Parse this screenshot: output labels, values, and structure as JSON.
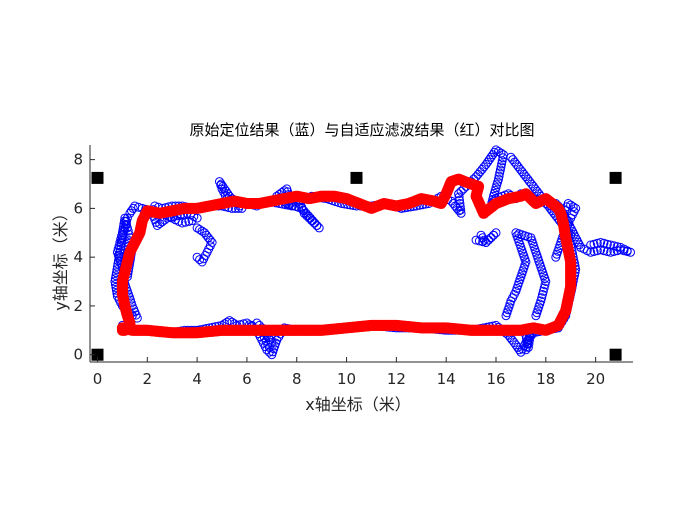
{
  "chart_data": {
    "type": "scatter",
    "title": "原始定位结果（蓝）与自适应滤波结果（红）对比图",
    "xlabel": "x轴坐标（米）",
    "ylabel": "y轴坐标（米）",
    "xlim": [
      -0.3,
      21.5
    ],
    "ylim": [
      -0.3,
      8.6
    ],
    "xticks": [
      0,
      2,
      4,
      6,
      8,
      10,
      12,
      14,
      16,
      18,
      20
    ],
    "yticks": [
      0,
      2,
      4,
      6,
      8
    ],
    "grid": false,
    "legend": false,
    "colors": {
      "raw": "#0000ff",
      "filtered": "#ff0000",
      "anchor": "#000000"
    },
    "anchors": [
      {
        "x": 0.0,
        "y": 0.0
      },
      {
        "x": 0.0,
        "y": 7.25
      },
      {
        "x": 10.4,
        "y": 7.25
      },
      {
        "x": 20.8,
        "y": 7.25
      },
      {
        "x": 20.8,
        "y": 0.0
      }
    ],
    "series": [
      {
        "marker": "circle-open",
        "x": [
          1.0,
          1.3,
          1.6,
          2.0,
          2.5,
          3.0,
          3.5,
          4.0,
          4.5,
          5.0,
          5.3,
          5.6,
          6.0,
          6.4,
          6.6,
          6.8,
          7.0,
          7.2,
          7.5,
          8.0,
          8.5,
          9.0,
          10.0,
          11.0,
          12.0,
          13.0,
          14.0,
          15.0,
          16.0,
          16.5,
          16.8,
          17.0,
          17.2,
          17.5,
          18.0,
          18.5,
          18.8,
          19.0,
          19.2,
          19.0,
          18.8,
          18.7,
          18.6,
          18.4,
          18.2,
          18.0,
          17.8,
          17.5,
          17.2,
          17.0,
          16.8,
          16.5,
          16.0,
          15.8,
          15.9,
          16.1,
          16.3,
          16.0,
          15.6,
          15.2,
          14.8,
          14.5,
          14.6,
          14.2,
          13.8,
          13.3,
          12.8,
          12.2,
          11.6,
          11.0,
          10.4,
          9.8,
          9.2,
          8.6,
          8.1,
          8.3,
          8.6,
          8.9,
          8.2,
          7.6,
          7.2,
          7.6,
          7.8,
          7.3,
          6.8,
          6.4,
          6.0,
          5.6,
          5.2,
          5.0,
          4.9,
          5.1,
          5.3,
          5.6,
          5.8,
          5.4,
          5.0,
          4.6,
          4.2,
          3.8,
          3.4,
          3.0,
          2.6,
          2.3,
          2.2,
          2.4,
          2.8,
          3.2,
          3.6,
          4.0,
          3.8,
          3.4,
          3.0,
          2.6,
          2.2,
          1.8,
          1.5,
          1.3,
          1.2,
          1.1,
          1.0,
          0.9,
          0.8,
          0.7,
          0.8,
          1.0,
          1.2,
          1.4,
          1.6,
          1.4,
          1.2,
          1.0,
          1.1,
          1.2,
          1.3,
          1.2,
          1.1,
          1.0,
          0.9,
          0.8,
          1.0,
          1.2,
          1.4,
          1.6,
          4.0,
          4.2,
          4.4,
          4.6,
          4.3,
          4.0,
          6.2,
          6.4,
          6.6,
          6.8,
          7.0,
          6.9,
          6.7,
          16.4,
          16.6,
          16.8,
          17.0,
          17.2,
          17.0,
          16.8,
          17.4,
          17.6,
          17.8,
          18.0,
          17.8,
          17.6,
          18.4,
          18.6,
          18.8,
          19.0,
          19.2,
          18.9,
          18.7,
          19.4,
          19.8,
          20.2,
          20.6,
          21.0,
          21.4,
          21.0,
          20.6,
          20.2,
          19.8,
          17.2,
          17.3,
          17.4,
          17.3,
          17.2,
          16.6,
          16.9,
          17.2,
          17.5,
          17.8,
          18.1,
          18.4,
          18.7,
          19.0,
          15.4,
          15.6,
          15.8,
          16.0,
          15.6,
          15.2
        ],
        "y": [
          1.2,
          1.1,
          1.0,
          1.0,
          0.9,
          0.9,
          1.0,
          1.0,
          1.1,
          1.2,
          1.4,
          1.2,
          1.3,
          1.0,
          0.6,
          0.2,
          0.0,
          0.6,
          1.1,
          1.0,
          1.0,
          1.0,
          1.1,
          1.2,
          1.1,
          1.1,
          1.0,
          1.0,
          1.2,
          0.8,
          0.4,
          0.1,
          0.5,
          0.9,
          1.0,
          1.1,
          1.6,
          2.5,
          3.5,
          4.5,
          5.2,
          5.8,
          6.0,
          6.2,
          6.1,
          6.2,
          6.3,
          6.4,
          6.5,
          6.6,
          6.4,
          6.6,
          6.4,
          6.1,
          6.5,
          7.2,
          8.2,
          8.4,
          7.8,
          7.3,
          6.9,
          6.6,
          5.8,
          6.3,
          6.5,
          6.2,
          6.1,
          6.0,
          6.2,
          6.1,
          6.1,
          6.2,
          6.4,
          6.5,
          6.3,
          5.8,
          5.5,
          5.2,
          6.0,
          6.2,
          6.5,
          6.8,
          6.1,
          6.2,
          6.3,
          6.1,
          6.2,
          6.3,
          6.4,
          6.8,
          7.1,
          6.8,
          6.5,
          6.2,
          6.0,
          6.0,
          6.1,
          6.1,
          6.0,
          6.0,
          6.1,
          6.1,
          6.0,
          6.1,
          5.8,
          5.3,
          5.6,
          5.7,
          5.8,
          5.6,
          5.5,
          5.4,
          5.6,
          5.8,
          5.9,
          6.0,
          6.1,
          5.8,
          5.6,
          5.2,
          4.8,
          4.2,
          3.6,
          3.0,
          2.4,
          2.0,
          1.8,
          1.6,
          1.5,
          2.0,
          2.6,
          3.2,
          3.8,
          4.2,
          4.8,
          5.2,
          5.6,
          5.0,
          4.6,
          4.2,
          3.6,
          3.2,
          4.4,
          4.8,
          4.0,
          3.8,
          4.2,
          4.6,
          5.0,
          5.2,
          1.2,
          1.3,
          1.1,
          0.8,
          0.5,
          0.3,
          0.7,
          1.6,
          2.2,
          2.6,
          3.2,
          3.8,
          4.4,
          5.0,
          4.8,
          4.2,
          3.6,
          3.0,
          2.2,
          1.6,
          4.0,
          4.6,
          5.2,
          5.6,
          6.0,
          6.2,
          5.8,
          4.4,
          4.2,
          4.3,
          4.2,
          4.3,
          4.2,
          4.4,
          4.5,
          4.6,
          4.5,
          0.2,
          0.6,
          1.0,
          0.3,
          0.8,
          8.1,
          7.7,
          7.3,
          6.9,
          6.5,
          6.1,
          5.7,
          5.3,
          4.9,
          4.9,
          4.6,
          4.8,
          5.0,
          4.6,
          4.7
        ]
      },
      {
        "marker": "circle-filled",
        "x": [
          1.0,
          1.4,
          2.0,
          3.0,
          4.0,
          5.0,
          6.0,
          7.0,
          8.0,
          9.0,
          10.0,
          11.0,
          12.0,
          13.0,
          14.0,
          15.0,
          16.0,
          17.0,
          17.5,
          18.0,
          18.5,
          18.8,
          19.0,
          19.0,
          18.8,
          18.7,
          18.6,
          18.5,
          18.0,
          17.6,
          17.2,
          17.0,
          16.5,
          16.0,
          15.5,
          15.2,
          15.3,
          15.0,
          14.5,
          14.2,
          14.0,
          13.8,
          13.5,
          13.0,
          12.5,
          12.0,
          11.5,
          11.0,
          10.5,
          10.0,
          9.5,
          9.0,
          8.5,
          8.0,
          7.5,
          7.0,
          6.5,
          6.0,
          5.5,
          5.0,
          4.5,
          4.0,
          3.5,
          3.0,
          2.5,
          2.0,
          1.8,
          1.7,
          1.5,
          1.3,
          1.2,
          1.1,
          1.0,
          1.0,
          1.1,
          1.2,
          1.3,
          1.3,
          1.2,
          1.1,
          1.0
        ],
        "y": [
          1.1,
          1.0,
          1.0,
          0.9,
          0.9,
          1.0,
          1.0,
          1.0,
          1.0,
          1.0,
          1.1,
          1.2,
          1.2,
          1.1,
          1.1,
          1.0,
          1.0,
          1.0,
          1.1,
          1.0,
          1.2,
          1.8,
          2.8,
          3.8,
          4.8,
          5.4,
          5.8,
          6.0,
          6.4,
          6.2,
          6.6,
          6.5,
          6.4,
          6.2,
          5.8,
          6.5,
          6.9,
          7.0,
          7.2,
          7.1,
          6.6,
          6.2,
          6.3,
          6.4,
          6.2,
          6.1,
          6.2,
          6.0,
          6.2,
          6.4,
          6.5,
          6.5,
          6.4,
          6.5,
          6.4,
          6.3,
          6.2,
          6.2,
          6.3,
          6.2,
          6.1,
          6.0,
          6.0,
          5.9,
          5.8,
          5.9,
          5.5,
          5.0,
          4.6,
          4.2,
          3.8,
          3.4,
          3.0,
          2.5,
          2.0,
          1.6,
          1.3,
          1.2,
          1.1,
          1.0,
          1.0
        ]
      }
    ]
  }
}
